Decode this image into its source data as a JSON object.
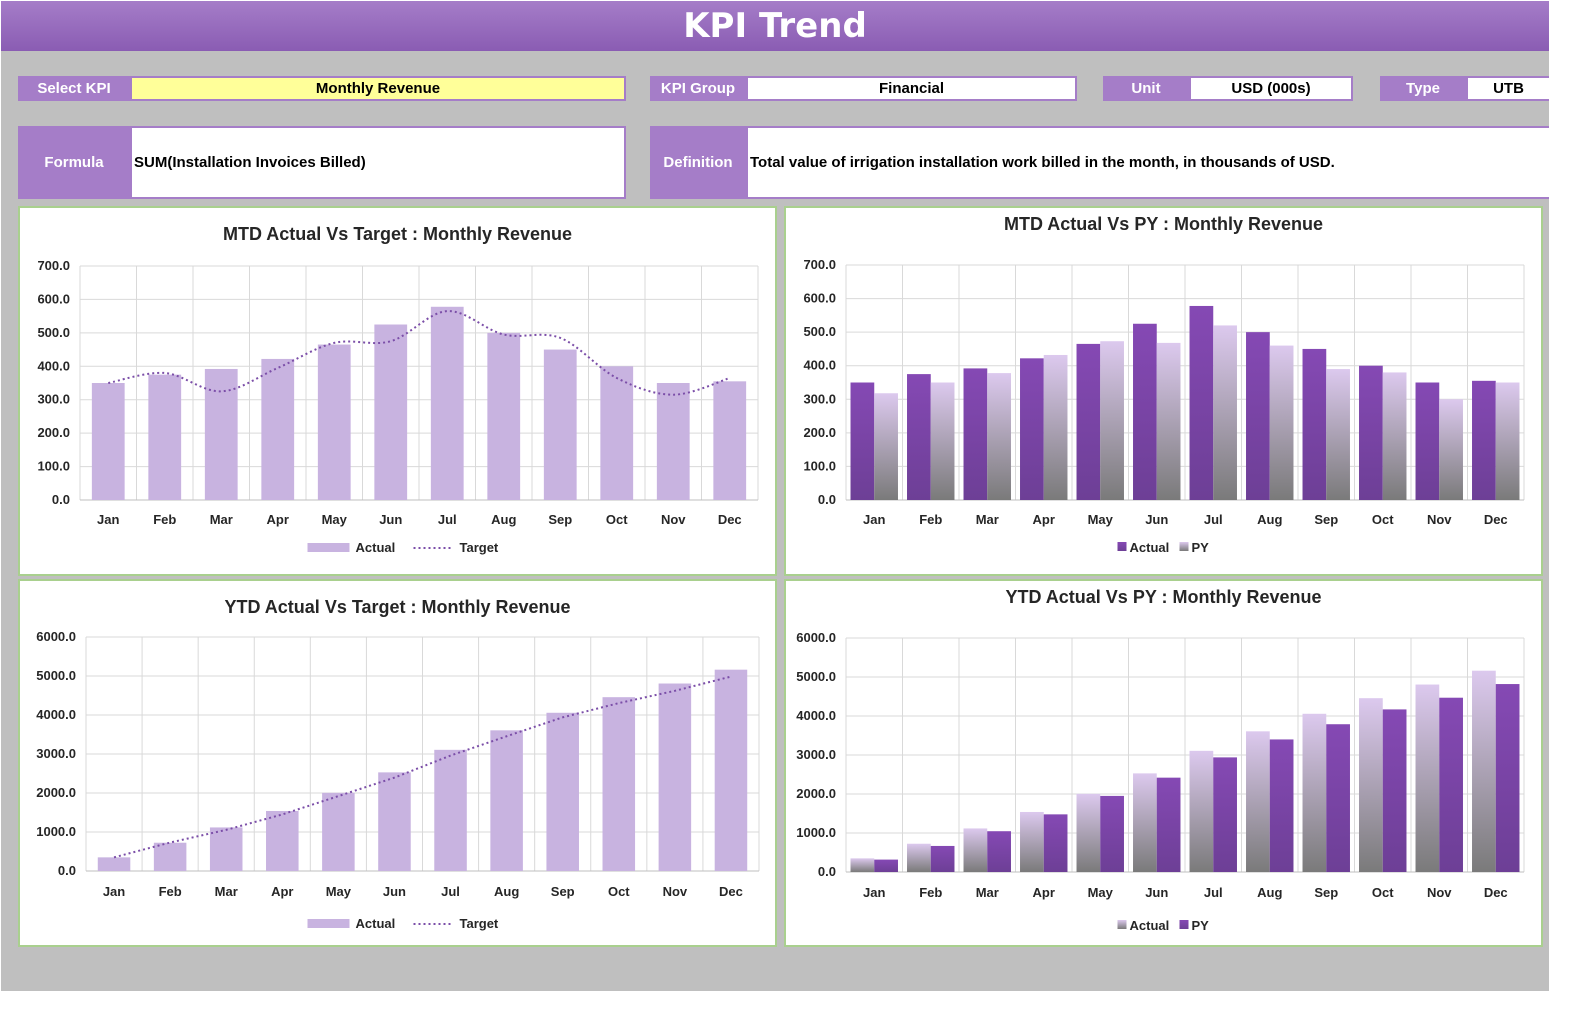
{
  "header": {
    "title": "KPI Trend"
  },
  "controls": {
    "select_kpi_label": "Select KPI",
    "select_kpi_value": "Monthly Revenue",
    "kpi_group_label": "KPI Group",
    "kpi_group_value": "Financial",
    "unit_label": "Unit",
    "unit_value": "USD (000s)",
    "type_label": "Type",
    "type_value": "UTB",
    "formula_label": "Formula",
    "formula_value": "SUM(Installation Invoices Billed)",
    "definition_label": "Definition",
    "definition_value": "Total value of irrigation installation work billed in the month, in thousands of USD."
  },
  "colors": {
    "accent": "#a57dc8",
    "title_bar": "#8a5cb3",
    "actual_light": "#c8b3e0",
    "actual_dark": "#8549b4",
    "target_line": "#7b4ea8",
    "panel_border": "#a9d08e",
    "background": "#bfbfbf"
  },
  "chart_data": [
    {
      "id": "mtd_target",
      "type": "bar",
      "title": "MTD Actual Vs Target : Monthly Revenue",
      "categories": [
        "Jan",
        "Feb",
        "Mar",
        "Apr",
        "May",
        "Jun",
        "Jul",
        "Aug",
        "Sep",
        "Oct",
        "Nov",
        "Dec"
      ],
      "ylim": [
        0,
        700
      ],
      "yticks": [
        "0.0",
        "100.0",
        "200.0",
        "300.0",
        "400.0",
        "500.0",
        "600.0",
        "700.0"
      ],
      "grid": true,
      "legend": "bottom",
      "series": [
        {
          "name": "Actual",
          "kind": "bar",
          "values": [
            350,
            375,
            392,
            422,
            465,
            525,
            578,
            500,
            450,
            400,
            350,
            355
          ]
        },
        {
          "name": "Target",
          "kind": "line",
          "values": [
            350,
            380,
            325,
            395,
            470,
            475,
            565,
            495,
            485,
            365,
            315,
            365
          ]
        }
      ]
    },
    {
      "id": "mtd_py",
      "type": "bar",
      "title": "MTD Actual Vs PY : Monthly Revenue",
      "categories": [
        "Jan",
        "Feb",
        "Mar",
        "Apr",
        "May",
        "Jun",
        "Jul",
        "Aug",
        "Sep",
        "Oct",
        "Nov",
        "Dec"
      ],
      "ylim": [
        0,
        700
      ],
      "yticks": [
        "0.0",
        "100.0",
        "200.0",
        "300.0",
        "400.0",
        "500.0",
        "600.0",
        "700.0"
      ],
      "grid": true,
      "legend": "bottom",
      "series": [
        {
          "name": "Actual",
          "kind": "bar",
          "values": [
            350,
            375,
            392,
            422,
            465,
            525,
            578,
            500,
            450,
            400,
            350,
            355
          ]
        },
        {
          "name": "PY",
          "kind": "bar",
          "values": [
            318,
            350,
            378,
            432,
            473,
            468,
            520,
            460,
            390,
            380,
            300,
            350
          ]
        }
      ]
    },
    {
      "id": "ytd_target",
      "type": "bar",
      "title": "YTD Actual Vs Target : Monthly Revenue",
      "categories": [
        "Jan",
        "Feb",
        "Mar",
        "Apr",
        "May",
        "Jun",
        "Jul",
        "Aug",
        "Sep",
        "Oct",
        "Nov",
        "Dec"
      ],
      "ylim": [
        0,
        6000
      ],
      "yticks": [
        "0.0",
        "1000.0",
        "2000.0",
        "3000.0",
        "4000.0",
        "5000.0",
        "6000.0"
      ],
      "grid": true,
      "legend": "bottom",
      "series": [
        {
          "name": "Actual",
          "kind": "bar",
          "values": [
            350,
            725,
            1117,
            1539,
            2004,
            2529,
            3107,
            3607,
            4057,
            4457,
            4807,
            5162
          ]
        },
        {
          "name": "Target",
          "kind": "line",
          "values": [
            350,
            730,
            1055,
            1450,
            1920,
            2395,
            2960,
            3455,
            3940,
            4305,
            4620,
            4985
          ]
        }
      ]
    },
    {
      "id": "ytd_py",
      "type": "bar",
      "title": "YTD Actual Vs PY : Monthly Revenue",
      "categories": [
        "Jan",
        "Feb",
        "Mar",
        "Apr",
        "May",
        "Jun",
        "Jul",
        "Aug",
        "Sep",
        "Oct",
        "Nov",
        "Dec"
      ],
      "ylim": [
        0,
        6000
      ],
      "yticks": [
        "0.0",
        "1000.0",
        "2000.0",
        "3000.0",
        "4000.0",
        "5000.0",
        "6000.0"
      ],
      "grid": true,
      "legend": "bottom",
      "series": [
        {
          "name": "Actual",
          "kind": "bar",
          "values": [
            350,
            725,
            1117,
            1539,
            2004,
            2529,
            3107,
            3607,
            4057,
            4457,
            4807,
            5162
          ]
        },
        {
          "name": "PY",
          "kind": "bar",
          "values": [
            318,
            668,
            1046,
            1478,
            1951,
            2419,
            2939,
            3399,
            3789,
            4169,
            4469,
            4819
          ]
        }
      ]
    }
  ]
}
